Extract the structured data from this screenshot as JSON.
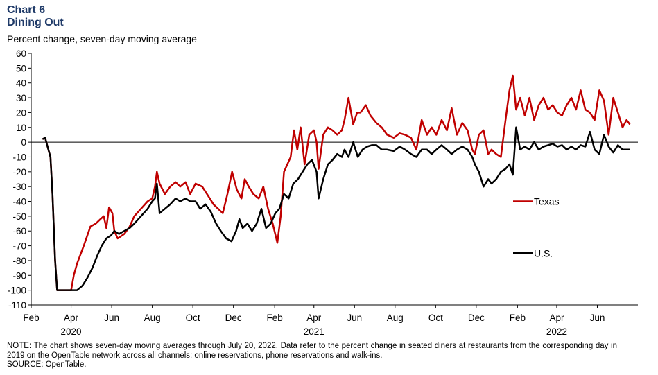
{
  "header": {
    "chart_number": "Chart 6",
    "title": "Dining Out",
    "subtitle": "Percent change, seven-day moving average"
  },
  "colors": {
    "texas": "#c00000",
    "us": "#000000",
    "title": "#1f3a68"
  },
  "chart_data": {
    "type": "line",
    "title": "Dining Out",
    "subtitle": "Percent change, seven-day moving average",
    "ylim": [
      -110,
      60
    ],
    "yticks": [
      60,
      50,
      40,
      30,
      20,
      10,
      0,
      -10,
      -20,
      -30,
      -40,
      -50,
      -60,
      -70,
      -80,
      -90,
      -100,
      -110
    ],
    "x_month_ticks": [
      "Feb",
      "Apr",
      "Jun",
      "Aug",
      "Oct",
      "Dec",
      "Feb",
      "Apr",
      "Jun",
      "Aug",
      "Oct",
      "Dec",
      "Feb",
      "Apr",
      "Jun"
    ],
    "x_year_labels": [
      "2020",
      "2021",
      "2022"
    ],
    "grid": false,
    "legend_position": "right",
    "series": [
      {
        "name": "Texas",
        "x": [
          "2020-02-18",
          "2020-02-22",
          "2020-02-25",
          "2020-03-01",
          "2020-03-04",
          "2020-03-08",
          "2020-03-11",
          "2020-03-14",
          "2020-03-18",
          "2020-03-22",
          "2020-04-01",
          "2020-04-05",
          "2020-04-10",
          "2020-04-20",
          "2020-04-30",
          "2020-05-08",
          "2020-05-15",
          "2020-05-20",
          "2020-05-24",
          "2020-05-28",
          "2020-06-02",
          "2020-06-05",
          "2020-06-10",
          "2020-06-20",
          "2020-06-28",
          "2020-07-05",
          "2020-07-15",
          "2020-07-25",
          "2020-08-01",
          "2020-08-05",
          "2020-08-08",
          "2020-08-12",
          "2020-08-20",
          "2020-08-28",
          "2020-09-05",
          "2020-09-12",
          "2020-09-20",
          "2020-09-27",
          "2020-10-05",
          "2020-10-15",
          "2020-10-25",
          "2020-11-01",
          "2020-11-08",
          "2020-11-15",
          "2020-11-22",
          "2020-11-29",
          "2020-12-06",
          "2020-12-13",
          "2020-12-18",
          "2020-12-24",
          "2020-12-31",
          "2021-01-08",
          "2021-01-15",
          "2021-01-22",
          "2021-01-29",
          "2021-02-05",
          "2021-02-10",
          "2021-02-15",
          "2021-02-20",
          "2021-02-25",
          "2021-03-02",
          "2021-03-07",
          "2021-03-12",
          "2021-03-18",
          "2021-03-25",
          "2021-04-01",
          "2021-04-05",
          "2021-04-08",
          "2021-04-15",
          "2021-04-22",
          "2021-04-29",
          "2021-05-06",
          "2021-05-13",
          "2021-05-17",
          "2021-05-23",
          "2021-05-30",
          "2021-06-05",
          "2021-06-10",
          "2021-06-18",
          "2021-06-25",
          "2021-07-04",
          "2021-07-12",
          "2021-07-20",
          "2021-07-30",
          "2021-08-08",
          "2021-08-16",
          "2021-08-25",
          "2021-09-02",
          "2021-09-10",
          "2021-09-18",
          "2021-09-25",
          "2021-10-02",
          "2021-10-10",
          "2021-10-18",
          "2021-10-25",
          "2021-11-02",
          "2021-11-10",
          "2021-11-18",
          "2021-11-25",
          "2021-11-29",
          "2021-12-05",
          "2021-12-12",
          "2021-12-19",
          "2021-12-24",
          "2021-12-31",
          "2022-01-07",
          "2022-01-14",
          "2022-01-20",
          "2022-01-25",
          "2022-01-30",
          "2022-02-05",
          "2022-02-12",
          "2022-02-19",
          "2022-02-26",
          "2022-03-05",
          "2022-03-12",
          "2022-03-19",
          "2022-03-26",
          "2022-04-02",
          "2022-04-09",
          "2022-04-16",
          "2022-04-23",
          "2022-04-30",
          "2022-05-07",
          "2022-05-14",
          "2022-05-21",
          "2022-05-28",
          "2022-06-04",
          "2022-06-11",
          "2022-06-18",
          "2022-06-25",
          "2022-07-02",
          "2022-07-09",
          "2022-07-15",
          "2022-07-20"
        ],
        "y": [
          2,
          3,
          -2,
          -10,
          -35,
          -80,
          -100,
          -100,
          -100,
          -100,
          -100,
          -90,
          -82,
          -70,
          -57,
          -55,
          -52,
          -50,
          -58,
          -44,
          -48,
          -60,
          -65,
          -62,
          -57,
          -50,
          -45,
          -40,
          -38,
          -30,
          -20,
          -28,
          -35,
          -30,
          -27,
          -30,
          -27,
          -35,
          -28,
          -30,
          -37,
          -42,
          -45,
          -48,
          -35,
          -20,
          -32,
          -38,
          -25,
          -30,
          -35,
          -38,
          -30,
          -45,
          -55,
          -68,
          -50,
          -20,
          -15,
          -10,
          8,
          -5,
          10,
          -15,
          5,
          8,
          0,
          -18,
          5,
          10,
          8,
          5,
          8,
          15,
          30,
          12,
          20,
          20,
          25,
          18,
          13,
          10,
          5,
          3,
          6,
          5,
          3,
          -5,
          15,
          5,
          10,
          5,
          15,
          8,
          23,
          5,
          13,
          8,
          -5,
          -8,
          5,
          8,
          -8,
          -5,
          -8,
          -10,
          15,
          35,
          45,
          22,
          30,
          18,
          30,
          15,
          25,
          30,
          22,
          25,
          20,
          18,
          25,
          30,
          22,
          35,
          22,
          20,
          15,
          35,
          28,
          5,
          30,
          20,
          10,
          15,
          12
        ],
        "color": "#c00000"
      },
      {
        "name": "U.S.",
        "x": [
          "2020-02-18",
          "2020-02-22",
          "2020-02-25",
          "2020-03-01",
          "2020-03-04",
          "2020-03-08",
          "2020-03-11",
          "2020-03-14",
          "2020-03-18",
          "2020-03-22",
          "2020-04-01",
          "2020-04-10",
          "2020-04-18",
          "2020-04-25",
          "2020-05-03",
          "2020-05-10",
          "2020-05-17",
          "2020-05-24",
          "2020-05-31",
          "2020-06-05",
          "2020-06-12",
          "2020-06-20",
          "2020-06-28",
          "2020-07-05",
          "2020-07-15",
          "2020-07-25",
          "2020-08-01",
          "2020-08-05",
          "2020-08-08",
          "2020-08-12",
          "2020-08-20",
          "2020-08-28",
          "2020-09-05",
          "2020-09-12",
          "2020-09-20",
          "2020-09-27",
          "2020-10-05",
          "2020-10-12",
          "2020-10-20",
          "2020-10-28",
          "2020-11-05",
          "2020-11-12",
          "2020-11-20",
          "2020-11-28",
          "2020-12-05",
          "2020-12-10",
          "2020-12-15",
          "2020-12-22",
          "2020-12-29",
          "2021-01-05",
          "2021-01-12",
          "2021-01-19",
          "2021-01-26",
          "2021-02-02",
          "2021-02-08",
          "2021-02-15",
          "2021-02-22",
          "2021-03-01",
          "2021-03-08",
          "2021-03-15",
          "2021-03-22",
          "2021-03-29",
          "2021-04-05",
          "2021-04-08",
          "2021-04-15",
          "2021-04-22",
          "2021-04-29",
          "2021-05-06",
          "2021-05-13",
          "2021-05-17",
          "2021-05-23",
          "2021-05-30",
          "2021-06-06",
          "2021-06-13",
          "2021-06-20",
          "2021-06-27",
          "2021-07-04",
          "2021-07-12",
          "2021-07-20",
          "2021-07-30",
          "2021-08-08",
          "2021-08-16",
          "2021-08-25",
          "2021-09-02",
          "2021-09-10",
          "2021-09-18",
          "2021-09-25",
          "2021-10-02",
          "2021-10-10",
          "2021-10-18",
          "2021-10-25",
          "2021-11-02",
          "2021-11-10",
          "2021-11-18",
          "2021-11-25",
          "2021-11-29",
          "2021-12-05",
          "2021-12-12",
          "2021-12-19",
          "2021-12-24",
          "2021-12-31",
          "2022-01-07",
          "2022-01-14",
          "2022-01-20",
          "2022-01-25",
          "2022-01-30",
          "2022-02-05",
          "2022-02-12",
          "2022-02-19",
          "2022-02-26",
          "2022-03-05",
          "2022-03-12",
          "2022-03-19",
          "2022-03-26",
          "2022-04-02",
          "2022-04-09",
          "2022-04-16",
          "2022-04-23",
          "2022-04-30",
          "2022-05-07",
          "2022-05-14",
          "2022-05-21",
          "2022-05-28",
          "2022-06-04",
          "2022-06-11",
          "2022-06-18",
          "2022-06-25",
          "2022-07-02",
          "2022-07-09",
          "2022-07-15",
          "2022-07-20"
        ],
        "y": [
          2,
          3,
          -2,
          -10,
          -35,
          -80,
          -100,
          -100,
          -100,
          -100,
          -100,
          -100,
          -97,
          -92,
          -85,
          -77,
          -70,
          -65,
          -63,
          -60,
          -62,
          -60,
          -58,
          -55,
          -50,
          -45,
          -40,
          -38,
          -28,
          -48,
          -45,
          -42,
          -38,
          -40,
          -38,
          -40,
          -40,
          -45,
          -42,
          -47,
          -55,
          -60,
          -65,
          -67,
          -60,
          -52,
          -58,
          -55,
          -60,
          -55,
          -45,
          -58,
          -55,
          -48,
          -45,
          -35,
          -38,
          -28,
          -25,
          -20,
          -15,
          -12,
          -20,
          -38,
          -25,
          -15,
          -12,
          -8,
          -10,
          -5,
          -10,
          0,
          -10,
          -5,
          -3,
          -2,
          -2,
          -5,
          -5,
          -6,
          -3,
          -5,
          -8,
          -10,
          -5,
          -5,
          -8,
          -5,
          -2,
          -5,
          -8,
          -5,
          -3,
          -5,
          -10,
          -15,
          -20,
          -30,
          -25,
          -28,
          -25,
          -20,
          -18,
          -15,
          -22,
          10,
          -5,
          -3,
          -5,
          0,
          -5,
          -3,
          -2,
          -1,
          -3,
          -2,
          -5,
          -3,
          -5,
          -2,
          -3,
          7,
          -5,
          -8,
          5,
          -3,
          -7,
          -2,
          -5,
          -5,
          -5
        ],
        "color": "#000000"
      }
    ]
  },
  "footer": {
    "note": "NOTE: The chart shows seven-day moving averages through July 20, 2022. Data refer to the percent change in seated diners at restaurants from the corresponding day in 2019 on the OpenTable network across all channels: online reservations, phone reservations and walk-ins.",
    "source": "SOURCE: OpenTable."
  }
}
